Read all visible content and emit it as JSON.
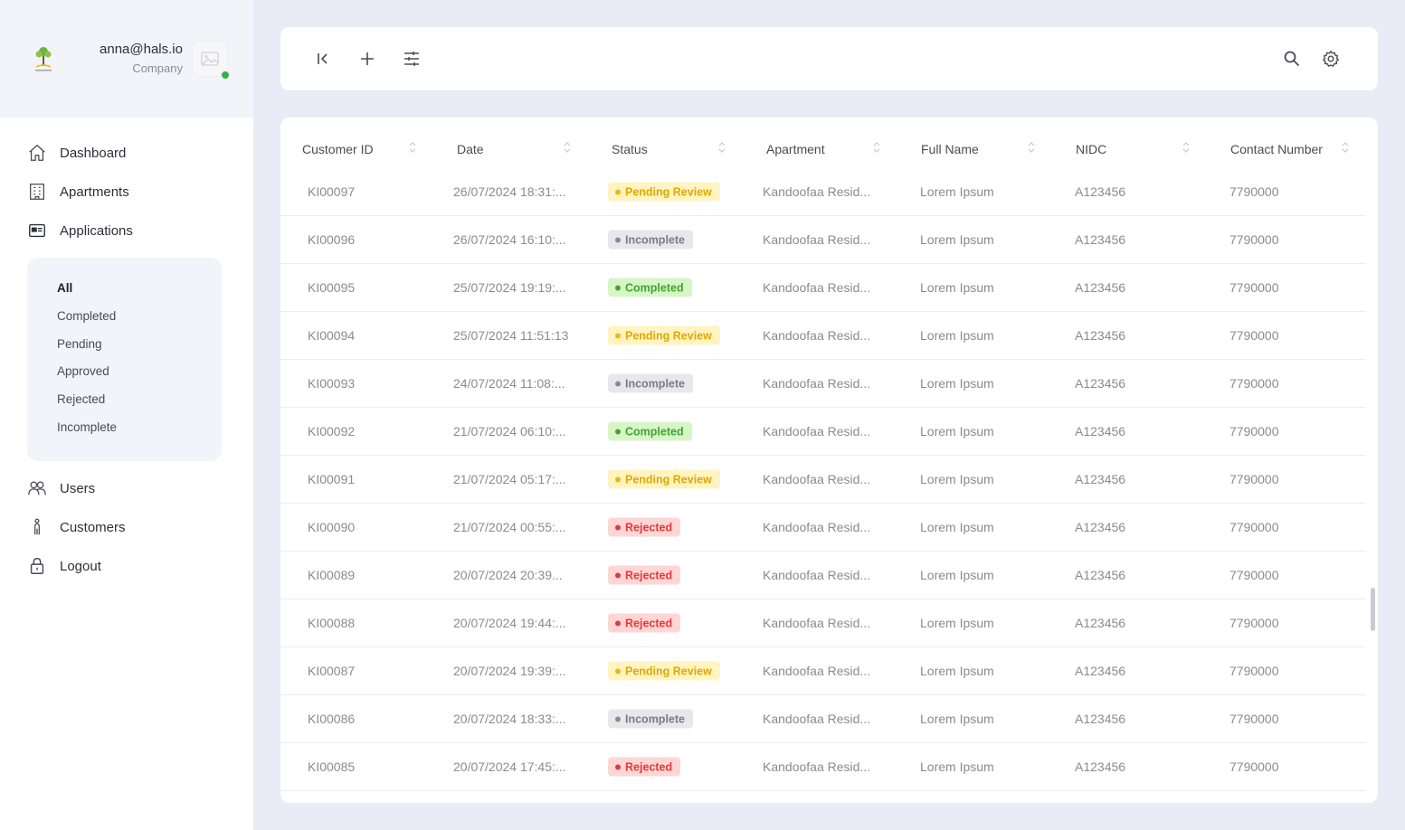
{
  "profile": {
    "email": "anna@hals.io",
    "role": "Company"
  },
  "nav": {
    "dashboard": "Dashboard",
    "apartments": "Apartments",
    "applications": "Applications",
    "users": "Users",
    "customers": "Customers",
    "logout": "Logout"
  },
  "submenu": [
    "All",
    "Completed",
    "Pending",
    "Approved",
    "Rejected",
    "Incomplete"
  ],
  "table": {
    "headers": [
      "Customer ID",
      "Date",
      "Status",
      "Apartment",
      "Full Name",
      "NIDC",
      "Contact Number"
    ],
    "rows": [
      {
        "id": "KI00097",
        "date": "26/07/2024 18:31:...",
        "status": "Pending Review",
        "apartment": "Kandoofaa Resid...",
        "name": "Lorem Ipsum",
        "nidc": "A123456",
        "contact": "7790000"
      },
      {
        "id": "KI00096",
        "date": "26/07/2024 16:10:...",
        "status": "Incomplete",
        "apartment": "Kandoofaa Resid...",
        "name": "Lorem Ipsum",
        "nidc": "A123456",
        "contact": "7790000"
      },
      {
        "id": "KI00095",
        "date": "25/07/2024 19:19:...",
        "status": "Completed",
        "apartment": "Kandoofaa Resid...",
        "name": "Lorem Ipsum",
        "nidc": "A123456",
        "contact": "7790000"
      },
      {
        "id": "KI00094",
        "date": "25/07/2024 11:51:13",
        "status": "Pending Review",
        "apartment": "Kandoofaa Resid...",
        "name": "Lorem Ipsum",
        "nidc": "A123456",
        "contact": "7790000"
      },
      {
        "id": "KI00093",
        "date": "24/07/2024 11:08:...",
        "status": "Incomplete",
        "apartment": "Kandoofaa Resid...",
        "name": "Lorem Ipsum",
        "nidc": "A123456",
        "contact": "7790000"
      },
      {
        "id": "KI00092",
        "date": "21/07/2024 06:10:...",
        "status": "Completed",
        "apartment": "Kandoofaa Resid...",
        "name": "Lorem Ipsum",
        "nidc": "A123456",
        "contact": "7790000"
      },
      {
        "id": "KI00091",
        "date": "21/07/2024 05:17:...",
        "status": "Pending Review",
        "apartment": "Kandoofaa Resid...",
        "name": "Lorem Ipsum",
        "nidc": "A123456",
        "contact": "7790000"
      },
      {
        "id": "KI00090",
        "date": "21/07/2024 00:55:...",
        "status": "Rejected",
        "apartment": "Kandoofaa Resid...",
        "name": "Lorem Ipsum",
        "nidc": "A123456",
        "contact": "7790000"
      },
      {
        "id": "KI00089",
        "date": "20/07/2024 20:39...",
        "status": "Rejected",
        "apartment": "Kandoofaa Resid...",
        "name": "Lorem Ipsum",
        "nidc": "A123456",
        "contact": "7790000"
      },
      {
        "id": "KI00088",
        "date": "20/07/2024 19:44:...",
        "status": "Rejected",
        "apartment": "Kandoofaa Resid...",
        "name": "Lorem Ipsum",
        "nidc": "A123456",
        "contact": "7790000"
      },
      {
        "id": "KI00087",
        "date": "20/07/2024 19:39:...",
        "status": "Pending Review",
        "apartment": "Kandoofaa Resid...",
        "name": "Lorem Ipsum",
        "nidc": "A123456",
        "contact": "7790000"
      },
      {
        "id": "KI00086",
        "date": "20/07/2024 18:33:...",
        "status": "Incomplete",
        "apartment": "Kandoofaa Resid...",
        "name": "Lorem Ipsum",
        "nidc": "A123456",
        "contact": "7790000"
      },
      {
        "id": "KI00085",
        "date": "20/07/2024 17:45:...",
        "status": "Rejected",
        "apartment": "Kandoofaa Resid...",
        "name": "Lorem Ipsum",
        "nidc": "A123456",
        "contact": "7790000"
      }
    ]
  },
  "status_colors": {
    "Pending Review": {
      "bg": "#fff4c2",
      "fg": "#e0a800",
      "dot": "#f2b705"
    },
    "Incomplete": {
      "bg": "#e8e8ec",
      "fg": "#7a7a86",
      "dot": "#8a8a96"
    },
    "Completed": {
      "bg": "#d8f5c8",
      "fg": "#3fa52f",
      "dot": "#3fa52f"
    },
    "Rejected": {
      "bg": "#ffd6d6",
      "fg": "#e53935",
      "dot": "#e53935"
    }
  },
  "icons": {
    "toolbar": [
      "collapse-icon",
      "plus-icon",
      "filter-sliders-icon",
      "search-icon",
      "gear-icon"
    ],
    "nav": [
      "home-icon",
      "building-icon",
      "card-icon",
      "users-icon",
      "person-icon",
      "lock-icon"
    ]
  }
}
